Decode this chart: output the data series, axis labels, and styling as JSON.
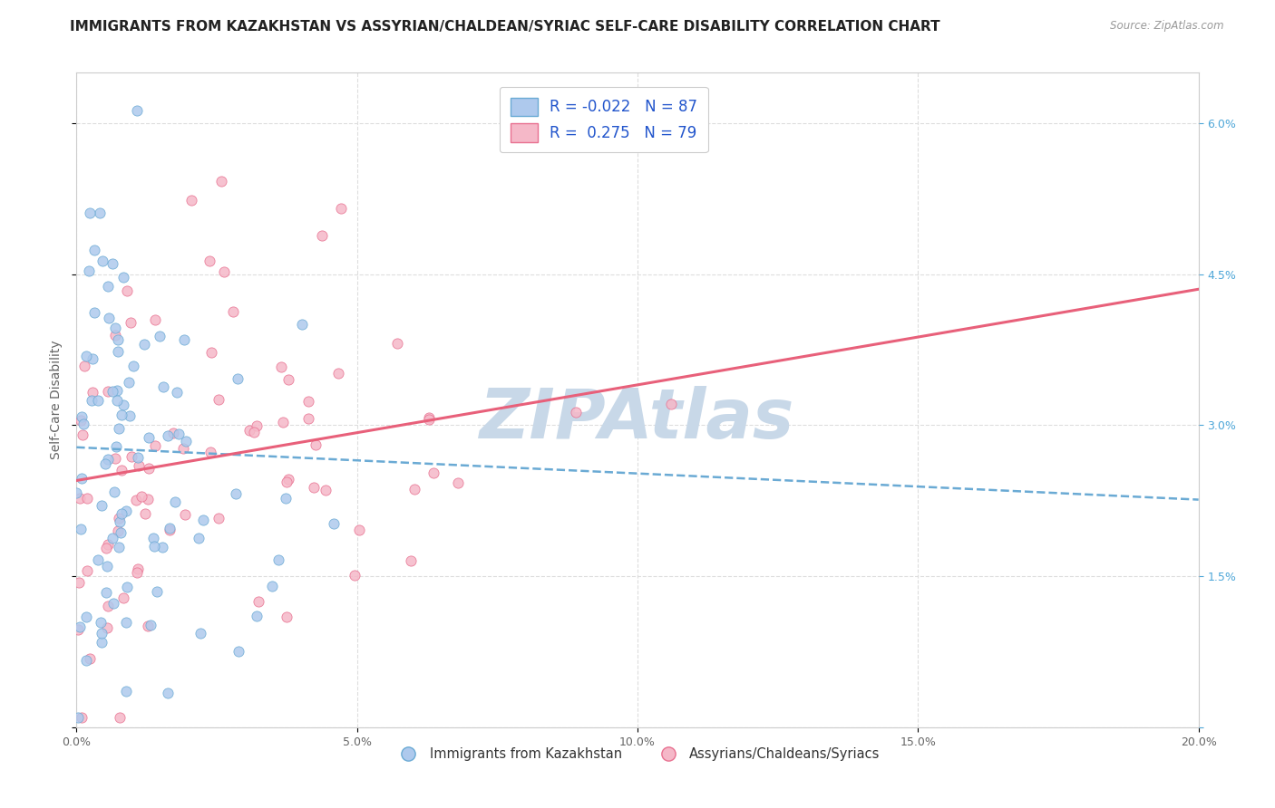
{
  "title": "IMMIGRANTS FROM KAZAKHSTAN VS ASSYRIAN/CHALDEAN/SYRIAC SELF-CARE DISABILITY CORRELATION CHART",
  "source": "Source: ZipAtlas.com",
  "ylabel": "Self-Care Disability",
  "xlim": [
    0.0,
    0.2
  ],
  "ylim": [
    0.0,
    0.065
  ],
  "xtick_vals": [
    0.0,
    0.05,
    0.1,
    0.15,
    0.2
  ],
  "xtick_labels": [
    "0.0%",
    "5.0%",
    "10.0%",
    "15.0%",
    "20.0%"
  ],
  "ytick_vals": [
    0.0,
    0.015,
    0.03,
    0.045,
    0.06
  ],
  "ytick_labels": [
    "",
    "1.5%",
    "3.0%",
    "4.5%",
    "6.0%"
  ],
  "blue_face": "#aec9ed",
  "blue_edge": "#6aaad4",
  "pink_face": "#f5b8c8",
  "pink_edge": "#e87090",
  "blue_trend_color": "#6aaad4",
  "pink_trend_color": "#e8607a",
  "watermark": "ZIPAtlas",
  "watermark_color": "#c8d8e8",
  "legend_R_blue": "-0.022",
  "legend_N_blue": "87",
  "legend_R_pink": "0.275",
  "legend_N_pink": "79",
  "legend_label_blue": "Immigrants from Kazakhstan",
  "legend_label_pink": "Assyrians/Chaldeans/Syriacs",
  "title_fontsize": 11,
  "axis_label_fontsize": 10,
  "tick_fontsize": 9,
  "blue_trend_intercept": 0.0278,
  "blue_trend_slope": -0.026,
  "pink_trend_intercept": 0.0245,
  "pink_trend_slope": 0.095
}
